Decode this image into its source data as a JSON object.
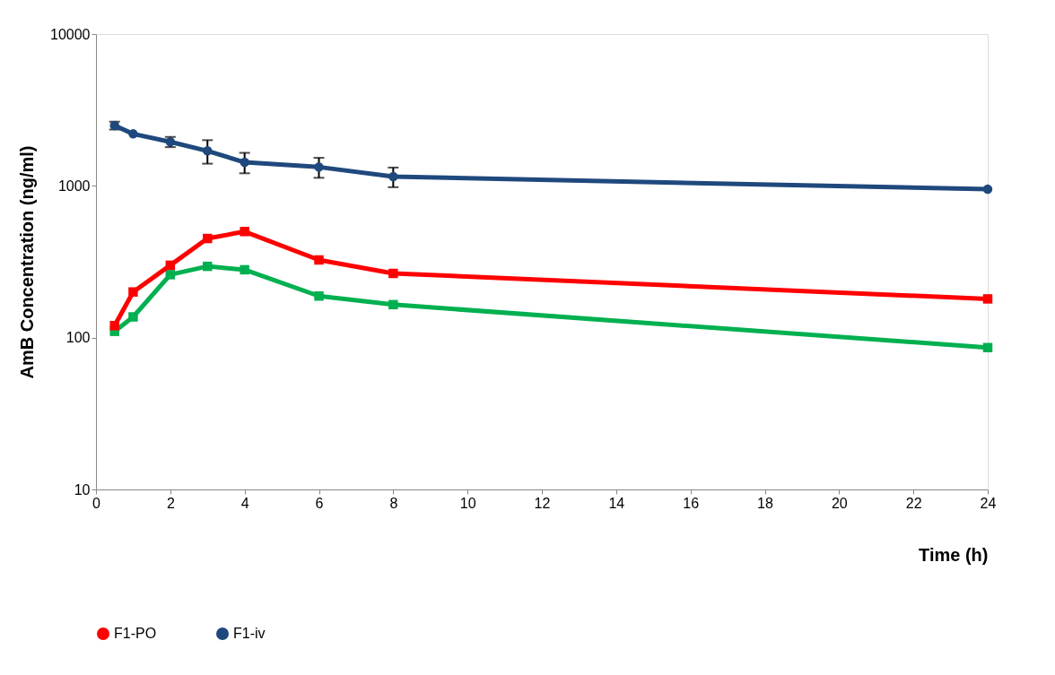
{
  "chart_data": {
    "type": "line",
    "xlabel": "Time (h)",
    "ylabel": "AmB Concentration (ng/ml)",
    "x": [
      0.5,
      1,
      2,
      3,
      4,
      6,
      8,
      24
    ],
    "series": [
      {
        "color": "#00b050",
        "marker": "square",
        "values": [
          110,
          137,
          260,
          295,
          280,
          188,
          165,
          86
        ]
      },
      {
        "name": "F1-PO",
        "color": "#ff0000",
        "marker": "square",
        "values": [
          120,
          200,
          300,
          450,
          500,
          325,
          265,
          180
        ]
      },
      {
        "name": "F1-iv",
        "color": "#1f497d",
        "marker": "circle",
        "values": [
          2500,
          2200,
          1950,
          1700,
          1430,
          1330,
          1150,
          950
        ],
        "errors": [
          150,
          null,
          150,
          300,
          220,
          200,
          170,
          null
        ]
      }
    ],
    "xlim": [
      0,
      24
    ],
    "xticks": [
      0,
      2,
      4,
      6,
      8,
      10,
      12,
      14,
      16,
      18,
      20,
      22,
      24
    ],
    "ylim": [
      10,
      10000
    ],
    "yticks": [
      10,
      100,
      1000,
      10000
    ],
    "log": "y",
    "grid": false,
    "legend": "bottom"
  }
}
